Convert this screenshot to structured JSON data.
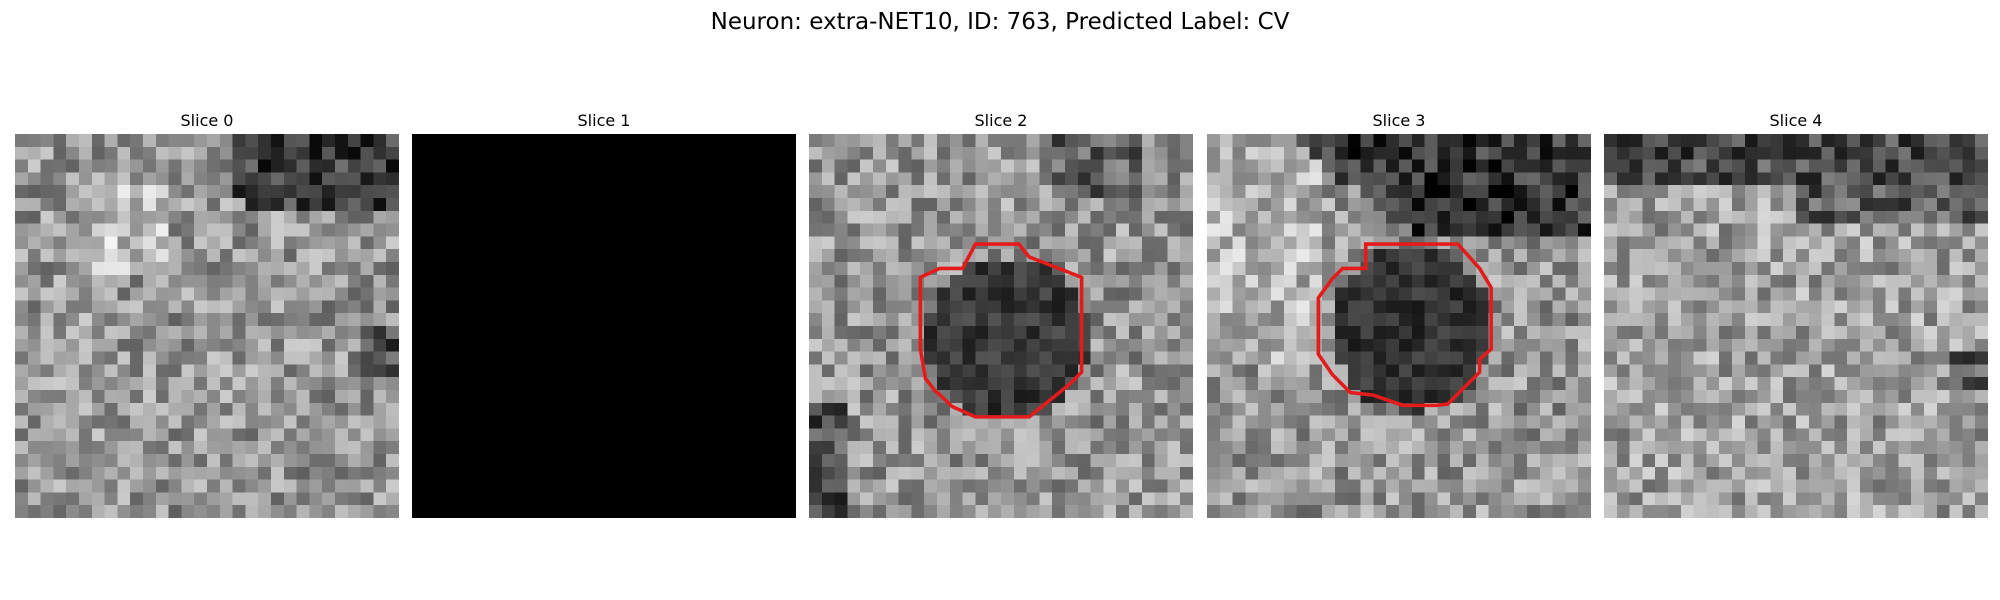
{
  "figure": {
    "title": "Neuron: extra-NET10, ID: 763, Predicted Label: CV"
  },
  "colors": {
    "contour": "#e31b1b",
    "blank_slice": "#000000",
    "background": "#ffffff"
  },
  "panels": [
    {
      "title": "Slice 0",
      "kind": "grayscale-texture",
      "has_contour": false
    },
    {
      "title": "Slice 1",
      "kind": "blank",
      "has_contour": false
    },
    {
      "title": "Slice 2",
      "kind": "grayscale-texture",
      "has_contour": true
    },
    {
      "title": "Slice 3",
      "kind": "grayscale-texture",
      "has_contour": true
    },
    {
      "title": "Slice 4",
      "kind": "grayscale-texture",
      "has_contour": false
    }
  ]
}
